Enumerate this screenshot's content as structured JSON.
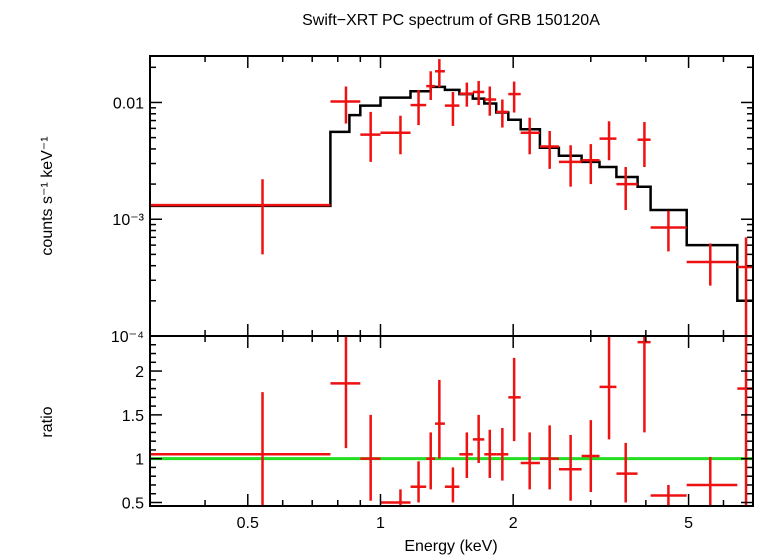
{
  "chart_data": [
    {
      "type": "scatter",
      "title": "Swift−XRT PC spectrum of GRB 150120A",
      "xlabel": "",
      "ylabel": "counts s⁻¹ keV⁻¹",
      "xscale": "log",
      "yscale": "log",
      "xlim": [
        0.3,
        7.0
      ],
      "ylim": [
        0.0001,
        0.025
      ],
      "yticks": [
        {
          "value": 0.01,
          "label": "0.01"
        },
        {
          "value": 0.001,
          "label": "10⁻³"
        },
        {
          "value": 0.0001,
          "label": "10⁻⁴"
        }
      ],
      "colors": {
        "data": "#ee1111",
        "model": "#000000"
      },
      "series": [
        {
          "kind": "data",
          "points": [
            {
              "x": 0.54,
              "xlo": 0.3,
              "xhi": 0.77,
              "y": 0.00132,
              "ylo": 0.0005,
              "yhi": 0.0022
            },
            {
              "x": 0.835,
              "xlo": 0.77,
              "xhi": 0.9,
              "y": 0.0102,
              "ylo": 0.0066,
              "yhi": 0.0137
            },
            {
              "x": 0.95,
              "xlo": 0.9,
              "xhi": 1.0,
              "y": 0.0053,
              "ylo": 0.0031,
              "yhi": 0.0083
            },
            {
              "x": 1.11,
              "xlo": 1.0,
              "xhi": 1.17,
              "y": 0.0055,
              "ylo": 0.0036,
              "yhi": 0.0077
            },
            {
              "x": 1.22,
              "xlo": 1.17,
              "xhi": 1.27,
              "y": 0.0095,
              "ylo": 0.0064,
              "yhi": 0.0128
            },
            {
              "x": 1.3,
              "xlo": 1.27,
              "xhi": 1.33,
              "y": 0.0138,
              "ylo": 0.0105,
              "yhi": 0.0185
            },
            {
              "x": 1.36,
              "xlo": 1.33,
              "xhi": 1.4,
              "y": 0.0185,
              "ylo": 0.0135,
              "yhi": 0.0235
            },
            {
              "x": 1.46,
              "xlo": 1.4,
              "xhi": 1.51,
              "y": 0.0094,
              "ylo": 0.0063,
              "yhi": 0.0123
            },
            {
              "x": 1.57,
              "xlo": 1.51,
              "xhi": 1.62,
              "y": 0.0119,
              "ylo": 0.0092,
              "yhi": 0.0148
            },
            {
              "x": 1.67,
              "xlo": 1.62,
              "xhi": 1.72,
              "y": 0.0123,
              "ylo": 0.0095,
              "yhi": 0.0153
            },
            {
              "x": 1.77,
              "xlo": 1.72,
              "xhi": 1.83,
              "y": 0.0106,
              "ylo": 0.0077,
              "yhi": 0.0137
            },
            {
              "x": 1.89,
              "xlo": 1.83,
              "xhi": 1.95,
              "y": 0.0083,
              "ylo": 0.0061,
              "yhi": 0.0106
            },
            {
              "x": 2.01,
              "xlo": 1.95,
              "xhi": 2.08,
              "y": 0.0118,
              "ylo": 0.0082,
              "yhi": 0.0151
            },
            {
              "x": 2.18,
              "xlo": 2.08,
              "xhi": 2.3,
              "y": 0.0055,
              "ylo": 0.0036,
              "yhi": 0.0074
            },
            {
              "x": 2.42,
              "xlo": 2.3,
              "xhi": 2.54,
              "y": 0.0042,
              "ylo": 0.0027,
              "yhi": 0.0057
            },
            {
              "x": 2.7,
              "xlo": 2.54,
              "xhi": 2.86,
              "y": 0.0031,
              "ylo": 0.0019,
              "yhi": 0.0043
            },
            {
              "x": 3.0,
              "xlo": 2.86,
              "xhi": 3.14,
              "y": 0.0032,
              "ylo": 0.002,
              "yhi": 0.0044
            },
            {
              "x": 3.3,
              "xlo": 3.14,
              "xhi": 3.43,
              "y": 0.0049,
              "ylo": 0.0032,
              "yhi": 0.0069
            },
            {
              "x": 3.6,
              "xlo": 3.43,
              "xhi": 3.83,
              "y": 0.002,
              "ylo": 0.0012,
              "yhi": 0.0028
            },
            {
              "x": 3.97,
              "xlo": 3.83,
              "xhi": 4.1,
              "y": 0.0048,
              "ylo": 0.0028,
              "yhi": 0.0068
            },
            {
              "x": 4.5,
              "xlo": 4.1,
              "xhi": 4.95,
              "y": 0.00085,
              "ylo": 0.00053,
              "yhi": 0.00118
            },
            {
              "x": 5.6,
              "xlo": 4.95,
              "xhi": 6.45,
              "y": 0.00043,
              "ylo": 0.00027,
              "yhi": 0.00062
            },
            {
              "x": 6.75,
              "xlo": 6.45,
              "xhi": 7.0,
              "y": 0.00039,
              "ylo": 0.0001,
              "yhi": 0.0007
            }
          ]
        },
        {
          "kind": "model",
          "steps": [
            {
              "xlo": 0.3,
              "xhi": 0.77,
              "y": 0.0013
            },
            {
              "xlo": 0.77,
              "xhi": 0.85,
              "y": 0.0056
            },
            {
              "xlo": 0.85,
              "xhi": 0.9,
              "y": 0.0078
            },
            {
              "xlo": 0.9,
              "xhi": 1.0,
              "y": 0.0094
            },
            {
              "xlo": 1.0,
              "xhi": 1.17,
              "y": 0.011
            },
            {
              "xlo": 1.17,
              "xhi": 1.3,
              "y": 0.0125
            },
            {
              "xlo": 1.3,
              "xhi": 1.4,
              "y": 0.0136
            },
            {
              "xlo": 1.4,
              "xhi": 1.51,
              "y": 0.0128
            },
            {
              "xlo": 1.51,
              "xhi": 1.62,
              "y": 0.0118
            },
            {
              "xlo": 1.62,
              "xhi": 1.72,
              "y": 0.0108
            },
            {
              "xlo": 1.72,
              "xhi": 1.83,
              "y": 0.0098
            },
            {
              "xlo": 1.83,
              "xhi": 1.95,
              "y": 0.0082
            },
            {
              "xlo": 1.95,
              "xhi": 2.08,
              "y": 0.0071
            },
            {
              "xlo": 2.08,
              "xhi": 2.3,
              "y": 0.0059
            },
            {
              "xlo": 2.3,
              "xhi": 2.54,
              "y": 0.0041
            },
            {
              "xlo": 2.54,
              "xhi": 2.86,
              "y": 0.0035
            },
            {
              "xlo": 2.86,
              "xhi": 3.14,
              "y": 0.0031
            },
            {
              "xlo": 3.14,
              "xhi": 3.43,
              "y": 0.0028
            },
            {
              "xlo": 3.43,
              "xhi": 3.83,
              "y": 0.0023
            },
            {
              "xlo": 3.83,
              "xhi": 4.1,
              "y": 0.0019
            },
            {
              "xlo": 4.1,
              "xhi": 4.95,
              "y": 0.0012
            },
            {
              "xlo": 4.95,
              "xhi": 6.45,
              "y": 0.0006
            },
            {
              "xlo": 6.45,
              "xhi": 7.0,
              "y": 0.0002
            }
          ]
        }
      ]
    },
    {
      "type": "scatter",
      "xlabel": "Energy (keV)",
      "ylabel": "ratio",
      "xscale": "log",
      "xlim": [
        0.3,
        7.0
      ],
      "ylim": [
        0.46,
        2.4
      ],
      "xticks": [
        {
          "value": 0.5,
          "label": "0.5"
        },
        {
          "value": 1,
          "label": "1"
        },
        {
          "value": 2,
          "label": "2"
        },
        {
          "value": 5,
          "label": "5"
        }
      ],
      "yticks": [
        {
          "value": 0.5,
          "label": "0.5"
        },
        {
          "value": 1,
          "label": "1"
        },
        {
          "value": 1.5,
          "label": "1.5"
        },
        {
          "value": 2,
          "label": "2"
        }
      ],
      "reference_line": 1,
      "colors": {
        "data": "#ee1111",
        "reference": "#22dd22"
      },
      "series": [
        {
          "kind": "ratio",
          "points": [
            {
              "x": 0.54,
              "xlo": 0.3,
              "xhi": 0.77,
              "y": 1.05,
              "ylo": 0.46,
              "yhi": 1.76
            },
            {
              "x": 0.835,
              "xlo": 0.77,
              "xhi": 0.9,
              "y": 1.86,
              "ylo": 1.12,
              "yhi": 2.4
            },
            {
              "x": 0.95,
              "xlo": 0.9,
              "xhi": 1.0,
              "y": 1.0,
              "ylo": 0.52,
              "yhi": 1.5
            },
            {
              "x": 1.11,
              "xlo": 1.0,
              "xhi": 1.17,
              "y": 0.5,
              "ylo": 0.46,
              "yhi": 0.65
            },
            {
              "x": 1.22,
              "xlo": 1.17,
              "xhi": 1.27,
              "y": 0.68,
              "ylo": 0.5,
              "yhi": 0.97
            },
            {
              "x": 1.3,
              "xlo": 1.27,
              "xhi": 1.33,
              "y": 1.0,
              "ylo": 0.65,
              "yhi": 1.3
            },
            {
              "x": 1.36,
              "xlo": 1.33,
              "xhi": 1.4,
              "y": 1.4,
              "ylo": 1.0,
              "yhi": 1.9
            },
            {
              "x": 1.46,
              "xlo": 1.4,
              "xhi": 1.51,
              "y": 0.68,
              "ylo": 0.5,
              "yhi": 0.9
            },
            {
              "x": 1.57,
              "xlo": 1.51,
              "xhi": 1.62,
              "y": 1.05,
              "ylo": 0.78,
              "yhi": 1.3
            },
            {
              "x": 1.67,
              "xlo": 1.62,
              "xhi": 1.72,
              "y": 1.22,
              "ylo": 0.95,
              "yhi": 1.5
            },
            {
              "x": 1.77,
              "xlo": 1.72,
              "xhi": 1.83,
              "y": 1.05,
              "ylo": 0.78,
              "yhi": 1.33
            },
            {
              "x": 1.89,
              "xlo": 1.83,
              "xhi": 1.95,
              "y": 1.05,
              "ylo": 0.75,
              "yhi": 1.35
            },
            {
              "x": 2.01,
              "xlo": 1.95,
              "xhi": 2.08,
              "y": 1.7,
              "ylo": 1.2,
              "yhi": 2.15
            },
            {
              "x": 2.18,
              "xlo": 2.08,
              "xhi": 2.3,
              "y": 0.95,
              "ylo": 0.65,
              "yhi": 1.3
            },
            {
              "x": 2.42,
              "xlo": 2.3,
              "xhi": 2.54,
              "y": 1.0,
              "ylo": 0.65,
              "yhi": 1.38
            },
            {
              "x": 2.7,
              "xlo": 2.54,
              "xhi": 2.86,
              "y": 0.88,
              "ylo": 0.52,
              "yhi": 1.27
            },
            {
              "x": 3.0,
              "xlo": 2.86,
              "xhi": 3.14,
              "y": 1.03,
              "ylo": 0.62,
              "yhi": 1.44
            },
            {
              "x": 3.3,
              "xlo": 3.14,
              "xhi": 3.43,
              "y": 1.82,
              "ylo": 1.22,
              "yhi": 2.4
            },
            {
              "x": 3.6,
              "xlo": 3.43,
              "xhi": 3.83,
              "y": 0.83,
              "ylo": 0.5,
              "yhi": 1.18
            },
            {
              "x": 3.97,
              "xlo": 3.83,
              "xhi": 4.1,
              "y": 2.33,
              "ylo": 1.3,
              "yhi": 2.4
            },
            {
              "x": 4.5,
              "xlo": 4.1,
              "xhi": 4.95,
              "y": 0.58,
              "ylo": 0.46,
              "yhi": 0.7
            },
            {
              "x": 5.6,
              "xlo": 4.95,
              "xhi": 6.45,
              "y": 0.7,
              "ylo": 0.46,
              "yhi": 1.02
            },
            {
              "x": 6.75,
              "xlo": 6.45,
              "xhi": 7.0,
              "y": 1.8,
              "ylo": 0.46,
              "yhi": 2.4
            }
          ]
        }
      ]
    }
  ]
}
